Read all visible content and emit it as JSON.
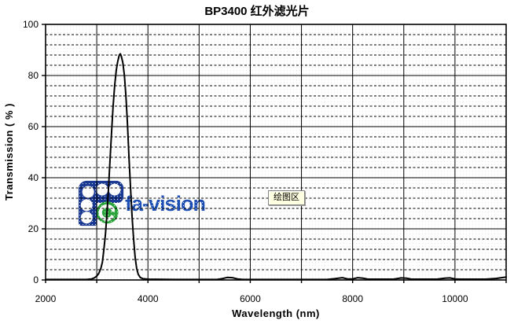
{
  "title": "BP3400 红外滤光片",
  "axes": {
    "x_label": "Wavelength (nm)",
    "y_label": "Transmission ( % )"
  },
  "watermark": {
    "text": "fa-vision",
    "blue_dark": "#1b3a94",
    "blue_text": "#1e4fb5",
    "green": "#2ca43c"
  },
  "tooltip": {
    "text": "绘图区",
    "bg": "#ffffe1"
  },
  "chart_data": {
    "type": "line",
    "title": "BP3400 红外滤光片",
    "xlabel": "Wavelength (nm)",
    "ylabel": "Transmission (%)",
    "xlim": [
      2000,
      11000
    ],
    "ylim": [
      0,
      100
    ],
    "x_major_grid_step": 1000,
    "y_major_grid_step": 20,
    "y_minor_grid_step": 4,
    "x_ticks": [
      2000,
      4000,
      6000,
      8000,
      10000
    ],
    "y_ticks": [
      0,
      20,
      40,
      60,
      80,
      100
    ],
    "grid": true,
    "legend": "none",
    "line_color": "#000000",
    "series": [
      {
        "name": "BP3400 transmission",
        "points": [
          [
            2000,
            0.2
          ],
          [
            2500,
            0.2
          ],
          [
            2800,
            0.2
          ],
          [
            2900,
            0.4
          ],
          [
            2950,
            0.8
          ],
          [
            3000,
            1.5
          ],
          [
            3040,
            2.6
          ],
          [
            3080,
            4.5
          ],
          [
            3110,
            7
          ],
          [
            3140,
            12
          ],
          [
            3170,
            18
          ],
          [
            3200,
            26
          ],
          [
            3230,
            36
          ],
          [
            3260,
            47
          ],
          [
            3290,
            58
          ],
          [
            3320,
            68
          ],
          [
            3350,
            76
          ],
          [
            3380,
            82
          ],
          [
            3410,
            85.5
          ],
          [
            3440,
            88
          ],
          [
            3460,
            88.5
          ],
          [
            3480,
            87.5
          ],
          [
            3510,
            85
          ],
          [
            3540,
            80
          ],
          [
            3570,
            72
          ],
          [
            3600,
            61
          ],
          [
            3630,
            48
          ],
          [
            3660,
            36
          ],
          [
            3690,
            25
          ],
          [
            3720,
            16
          ],
          [
            3750,
            9
          ],
          [
            3780,
            4.5
          ],
          [
            3810,
            2.2
          ],
          [
            3850,
            1
          ],
          [
            3900,
            0.5
          ],
          [
            4000,
            0.3
          ],
          [
            4500,
            0.2
          ],
          [
            5000,
            0.2
          ],
          [
            5350,
            0.2
          ],
          [
            5450,
            0.5
          ],
          [
            5550,
            1
          ],
          [
            5650,
            0.9
          ],
          [
            5750,
            0.4
          ],
          [
            5850,
            0.2
          ],
          [
            6500,
            0.2
          ],
          [
            7500,
            0.2
          ],
          [
            7650,
            0.5
          ],
          [
            7800,
            0.9
          ],
          [
            7900,
            0.4
          ],
          [
            8000,
            0.4
          ],
          [
            8100,
            0.9
          ],
          [
            8200,
            0.7
          ],
          [
            8300,
            0.3
          ],
          [
            8800,
            0.3
          ],
          [
            8950,
            0.8
          ],
          [
            9050,
            0.7
          ],
          [
            9150,
            0.3
          ],
          [
            9650,
            0.3
          ],
          [
            9800,
            0.7
          ],
          [
            9900,
            0.8
          ],
          [
            10000,
            0.4
          ],
          [
            10100,
            0.3
          ],
          [
            10600,
            0.3
          ],
          [
            10800,
            0.6
          ],
          [
            10950,
            1
          ],
          [
            11000,
            1.1
          ]
        ]
      }
    ]
  }
}
